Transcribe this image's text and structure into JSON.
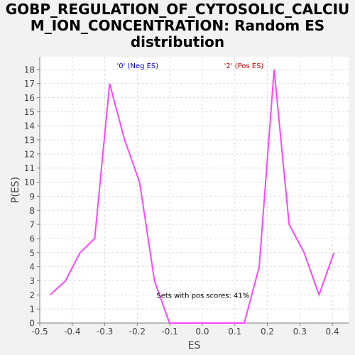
{
  "chart_data": {
    "type": "line",
    "title_lines": [
      "GOBP_REGULATION_OF_CYTOSOLIC_CALCIU",
      "M_ION_CONCENTRATION: Random ES",
      "distribution"
    ],
    "xlabel": "ES",
    "ylabel": "P(ES)",
    "xlim": [
      -0.5,
      0.45
    ],
    "ylim": [
      0,
      18.9
    ],
    "xticks": [
      -0.5,
      -0.4,
      -0.3,
      -0.2,
      -0.1,
      0.0,
      0.1,
      0.2,
      0.3,
      0.4
    ],
    "xtick_labels": [
      "-0.5",
      "-0.4",
      "-0.3",
      "-0.2",
      "-0.1",
      "0.0",
      "0.1",
      "0.2",
      "0.3",
      "0.4"
    ],
    "yticks": [
      0,
      1,
      2,
      3,
      4,
      5,
      6,
      7,
      8,
      9,
      10,
      11,
      12,
      13,
      14,
      15,
      16,
      17,
      18
    ],
    "ytick_labels": [
      "0",
      "1",
      "2",
      "3",
      "4",
      "5",
      "6",
      "7",
      "8",
      "9",
      "10",
      "11",
      "12",
      "13",
      "14",
      "15",
      "16",
      "17",
      "18"
    ],
    "grid": true,
    "series": [
      {
        "color": "#ff44ff",
        "x": [
          -0.468,
          -0.421,
          -0.376,
          -0.331,
          -0.285,
          -0.239,
          -0.193,
          -0.147,
          -0.101,
          -0.055,
          -0.009,
          0.037,
          0.083,
          0.129,
          0.175,
          0.221,
          0.267,
          0.313,
          0.359,
          0.405
        ],
        "y": [
          2,
          3,
          5,
          6,
          17,
          13,
          10,
          3,
          0,
          0,
          0,
          0,
          0,
          0,
          4,
          18,
          7,
          5,
          2,
          5
        ]
      }
    ],
    "annotations": [
      {
        "text": "'0' (Neg ES)",
        "x": -0.263,
        "y": 18.3,
        "color": "#0000cc"
      },
      {
        "text": "'2' (Pos ES)",
        "x": 0.067,
        "y": 18.3,
        "color": "#cc0000"
      },
      {
        "text": "Sets with pos scores: 41%",
        "x": -0.141,
        "y": 2.0,
        "color": "#000000"
      }
    ],
    "colors": {
      "background": "#f2f2f2",
      "plot_area": "#ffffff",
      "grid": "#dddddd",
      "axis": "#7f7f7f"
    }
  }
}
